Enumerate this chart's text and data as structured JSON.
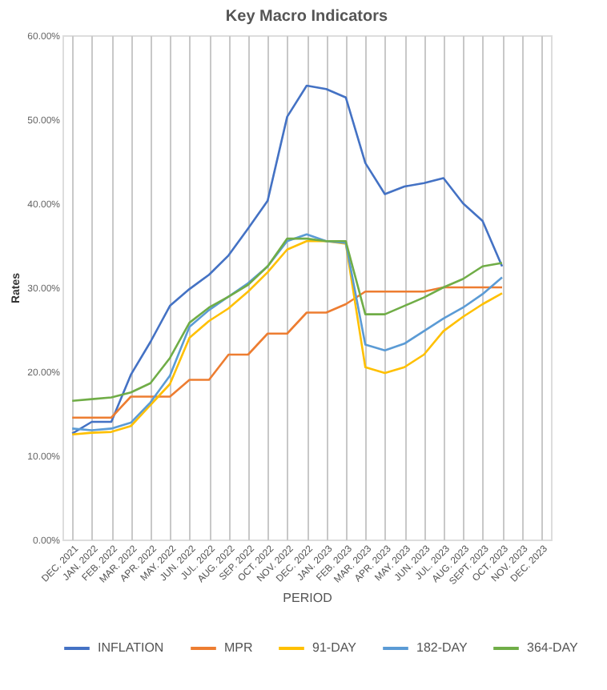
{
  "chart_data": {
    "type": "line",
    "title": "Key Macro Indicators",
    "xlabel": "PERIOD",
    "ylabel": "Rates",
    "categories": [
      "DEC. 2021",
      "JAN. 2022",
      "FEB. 2022",
      "MAR. 2022",
      "APR. 2022",
      "MAY. 2022",
      "JUN. 2022",
      "JUL. 2022",
      "AUG. 2022",
      "SEP. 2022",
      "OCT. 2022",
      "NOV. 2022",
      "DEC. 2022",
      "JAN. 2023",
      "FEB. 2023",
      "MAR. 2023",
      "APR. 2023",
      "MAY. 2023",
      "JUN. 2023",
      "JUL. 2023",
      "AUG. 2023",
      "SEPT. 2023",
      "OCT. 2023",
      "NOV. 2023",
      "DEC. 2023"
    ],
    "series": [
      {
        "name": "INFLATION",
        "color": "#4472c4",
        "values": [
          12.6,
          14.0,
          14.0,
          19.6,
          23.5,
          27.8,
          29.8,
          31.5,
          33.8,
          37.0,
          40.3,
          50.3,
          54.0,
          53.6,
          52.6,
          44.8,
          41.1,
          42.0,
          42.4,
          43.0,
          40.0,
          37.9,
          32.5,
          null,
          null
        ]
      },
      {
        "name": "MPR",
        "color": "#ed7d31",
        "values": [
          14.5,
          14.5,
          14.5,
          17.0,
          17.0,
          17.0,
          19.0,
          19.0,
          22.0,
          22.0,
          24.5,
          24.5,
          27.0,
          27.0,
          28.0,
          29.5,
          29.5,
          29.5,
          29.5,
          30.0,
          30.0,
          30.0,
          30.0,
          null,
          null
        ]
      },
      {
        "name": "91-DAY",
        "color": "#ffc000",
        "values": [
          12.5,
          12.7,
          12.8,
          13.5,
          16.0,
          18.5,
          24.0,
          26.0,
          27.5,
          29.5,
          31.8,
          34.5,
          35.5,
          35.5,
          35.2,
          20.5,
          19.8,
          20.5,
          22.0,
          24.8,
          26.5,
          28.0,
          29.3,
          null,
          null
        ]
      },
      {
        "name": "182-DAY",
        "color": "#5b9bd5",
        "values": [
          13.2,
          13.0,
          13.2,
          13.9,
          16.3,
          19.5,
          25.3,
          27.3,
          28.9,
          30.5,
          32.5,
          35.5,
          36.3,
          35.5,
          35.3,
          23.2,
          22.5,
          23.3,
          24.8,
          26.3,
          27.6,
          29.2,
          31.2,
          null,
          null
        ]
      },
      {
        "name": "364-DAY",
        "color": "#70ad47",
        "values": [
          16.5,
          16.7,
          16.9,
          17.5,
          18.6,
          21.6,
          25.8,
          27.6,
          28.9,
          30.3,
          32.5,
          35.8,
          35.8,
          35.5,
          35.5,
          26.8,
          26.8,
          27.8,
          28.8,
          30.0,
          31.0,
          32.5,
          32.9,
          null,
          null
        ]
      }
    ],
    "ylim": [
      0,
      60
    ],
    "yticks": [
      {
        "value": 0,
        "label": "0.00%"
      },
      {
        "value": 10,
        "label": "10.00%"
      },
      {
        "value": 20,
        "label": "20.00%"
      },
      {
        "value": 30,
        "label": "30.00%"
      },
      {
        "value": 40,
        "label": "40.00%"
      },
      {
        "value": 50,
        "label": "50.00%"
      },
      {
        "value": 60,
        "label": "60.00%"
      }
    ],
    "grid": "x",
    "legend": "bottom",
    "marker": "none",
    "line_style": "solid"
  }
}
